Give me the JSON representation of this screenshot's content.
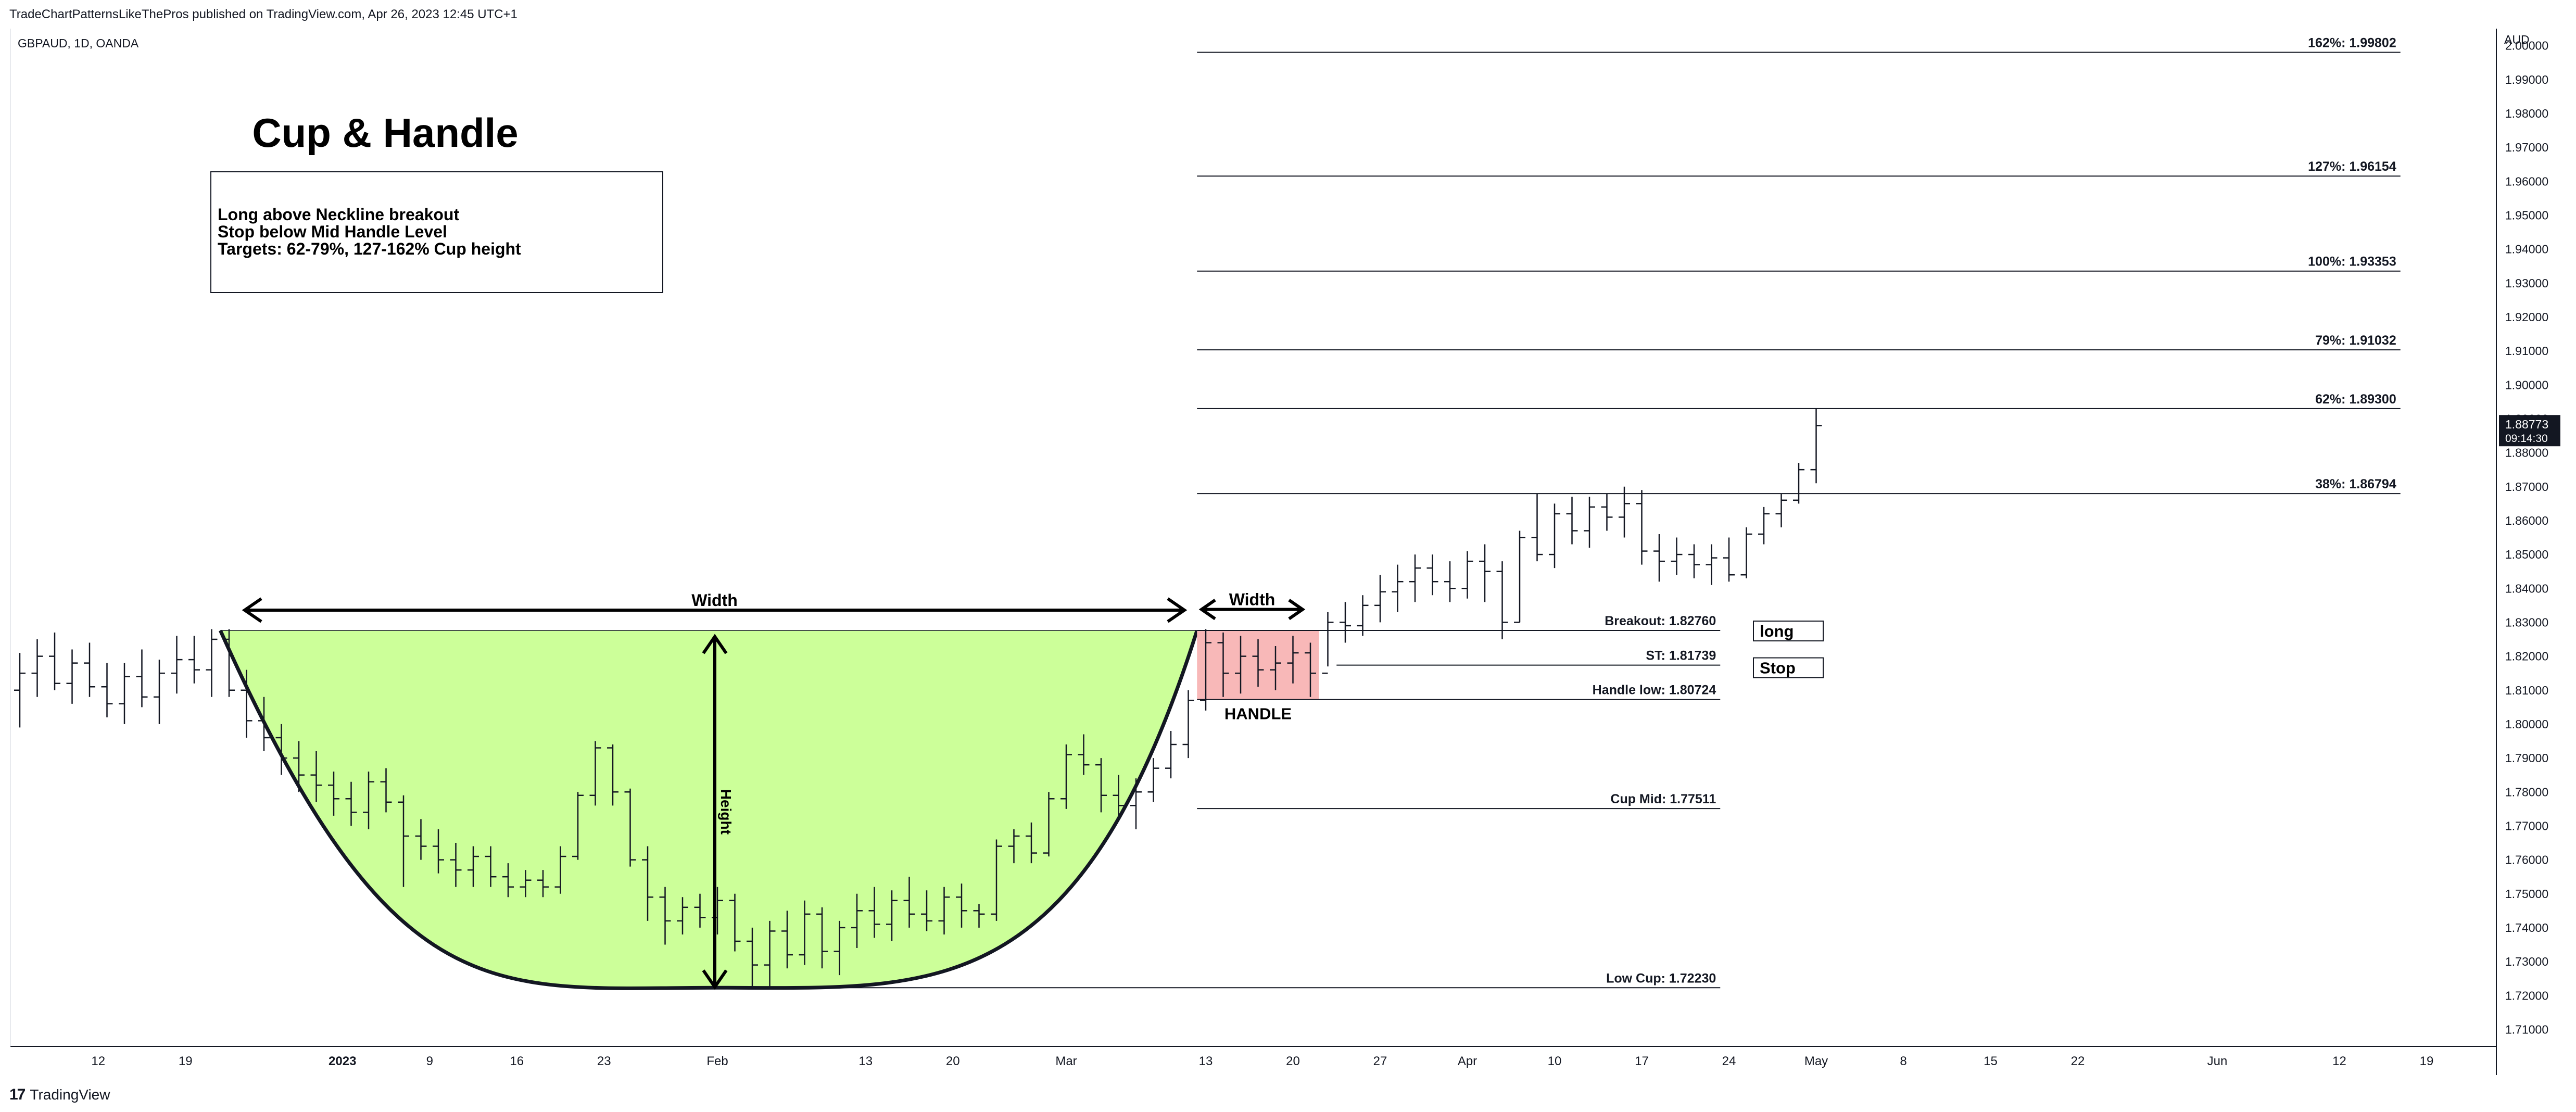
{
  "header": {
    "publish_line": "TradeChartPatternsLikeThePros published on TradingView.com, Apr 26, 2023 12:45 UTC+1",
    "symbol_line": "GBPAUD, 1D, OANDA"
  },
  "footer": {
    "brand": "TradingView",
    "logo_glyph": "17"
  },
  "chart_data": {
    "type": "ohlc-bar",
    "symbol": "GBPAUD",
    "timeframe": "1D",
    "exchange": "OANDA",
    "currency_label": "AUD",
    "ylim": [
      1.705,
      2.005
    ],
    "y_ticks": [
      "2.00000",
      "1.99000",
      "1.98000",
      "1.97000",
      "1.96000",
      "1.95000",
      "1.94000",
      "1.93000",
      "1.92000",
      "1.91000",
      "1.90000",
      "1.89000",
      "1.88000",
      "1.87000",
      "1.86000",
      "1.85000",
      "1.84000",
      "1.83000",
      "1.82000",
      "1.81000",
      "1.80000",
      "1.79000",
      "1.78000",
      "1.77000",
      "1.76000",
      "1.75000",
      "1.74000",
      "1.73000",
      "1.72000",
      "1.71000"
    ],
    "x_ticks": [
      {
        "label": "12",
        "bar": 4.5
      },
      {
        "label": "19",
        "bar": 9.5
      },
      {
        "label": "2023",
        "bar": 18.5,
        "bold": true
      },
      {
        "label": "9",
        "bar": 23.5
      },
      {
        "label": "16",
        "bar": 28.5
      },
      {
        "label": "23",
        "bar": 33.5
      },
      {
        "label": "Feb",
        "bar": 40
      },
      {
        "label": "13",
        "bar": 48.5
      },
      {
        "label": "20",
        "bar": 53.5
      },
      {
        "label": "Mar",
        "bar": 60
      },
      {
        "label": "13",
        "bar": 68
      },
      {
        "label": "20",
        "bar": 73
      },
      {
        "label": "27",
        "bar": 78
      },
      {
        "label": "Apr",
        "bar": 83
      },
      {
        "label": "10",
        "bar": 88
      },
      {
        "label": "17",
        "bar": 93
      },
      {
        "label": "24",
        "bar": 98
      },
      {
        "label": "May",
        "bar": 103
      },
      {
        "label": "8",
        "bar": 108
      },
      {
        "label": "15",
        "bar": 113
      },
      {
        "label": "22",
        "bar": 118
      },
      {
        "label": "Jun",
        "bar": 126
      },
      {
        "label": "12",
        "bar": 133
      },
      {
        "label": "19",
        "bar": 138
      }
    ],
    "last_price": {
      "value": "1.88773",
      "countdown": "09:14:30"
    },
    "levels": [
      {
        "label": "162%: 1.99802",
        "value": 1.99802,
        "from_bar": 67.5,
        "to_bar": 136.5
      },
      {
        "label": "127%: 1.96154",
        "value": 1.96154,
        "from_bar": 67.5,
        "to_bar": 136.5
      },
      {
        "label": "100%: 1.93353",
        "value": 1.93353,
        "from_bar": 67.5,
        "to_bar": 136.5
      },
      {
        "label": "79%: 1.91032",
        "value": 1.91032,
        "from_bar": 67.5,
        "to_bar": 136.5
      },
      {
        "label": "62%: 1.89300",
        "value": 1.893,
        "from_bar": 67.5,
        "to_bar": 136.5
      },
      {
        "label": "38%: 1.86794",
        "value": 1.86794,
        "from_bar": 67.5,
        "to_bar": 136.5
      },
      {
        "label": "Breakout: 1.82760",
        "value": 1.8276,
        "from_bar": 67.5,
        "to_bar": 97.5
      },
      {
        "label": "ST: 1.81739",
        "value": 1.81739,
        "from_bar": 75.5,
        "to_bar": 97.5
      },
      {
        "label": "Handle low: 1.80724",
        "value": 1.80724,
        "from_bar": 67.5,
        "to_bar": 97.5
      },
      {
        "label": "Cup Mid: 1.77511",
        "value": 1.77511,
        "from_bar": 67.5,
        "to_bar": 97.5
      },
      {
        "label": "Low Cup: 1.72230",
        "value": 1.7223,
        "from_bar": 42,
        "to_bar": 97.5
      }
    ],
    "annotations": {
      "title": "Cup & Handle",
      "note_lines": [
        "Long above Neckline breakout",
        "Stop below Mid Handle Level",
        "Targets: 62-79%, 127-162% Cup height"
      ],
      "cup_width_label": "Width",
      "handle_width_label": "Width",
      "height_label": "Height",
      "handle_label": "HANDLE",
      "long_label": "long",
      "stop_label": "Stop"
    },
    "pattern": {
      "rim_left_bar": 11.5,
      "rim_right_bar": 67.5,
      "rim_price": 1.8276,
      "bottom_bar": 40,
      "bottom_price": 1.7223,
      "handle_from_bar": 67.5,
      "handle_to_bar": 74.5,
      "handle_top": 1.8276,
      "handle_bottom": 1.8072
    },
    "colors": {
      "cup_fill": "#ccff99",
      "handle_fill": "#f8b8b8",
      "bar": "#131722",
      "line": "#131722"
    },
    "bars": [
      {
        "o": 1.81,
        "h": 1.821,
        "l": 1.799,
        "c": 1.815
      },
      {
        "o": 1.815,
        "h": 1.825,
        "l": 1.808,
        "c": 1.82
      },
      {
        "o": 1.82,
        "h": 1.827,
        "l": 1.81,
        "c": 1.812
      },
      {
        "o": 1.812,
        "h": 1.822,
        "l": 1.806,
        "c": 1.818
      },
      {
        "o": 1.818,
        "h": 1.824,
        "l": 1.808,
        "c": 1.811
      },
      {
        "o": 1.811,
        "h": 1.818,
        "l": 1.802,
        "c": 1.806
      },
      {
        "o": 1.806,
        "h": 1.818,
        "l": 1.8,
        "c": 1.814
      },
      {
        "o": 1.814,
        "h": 1.822,
        "l": 1.805,
        "c": 1.808
      },
      {
        "o": 1.808,
        "h": 1.819,
        "l": 1.8,
        "c": 1.815
      },
      {
        "o": 1.815,
        "h": 1.826,
        "l": 1.809,
        "c": 1.819
      },
      {
        "o": 1.819,
        "h": 1.826,
        "l": 1.812,
        "c": 1.816
      },
      {
        "o": 1.816,
        "h": 1.828,
        "l": 1.808,
        "c": 1.825
      },
      {
        "o": 1.825,
        "h": 1.828,
        "l": 1.808,
        "c": 1.81
      },
      {
        "o": 1.81,
        "h": 1.816,
        "l": 1.796,
        "c": 1.801
      },
      {
        "o": 1.801,
        "h": 1.808,
        "l": 1.792,
        "c": 1.796
      },
      {
        "o": 1.796,
        "h": 1.8,
        "l": 1.785,
        "c": 1.79
      },
      {
        "o": 1.79,
        "h": 1.795,
        "l": 1.78,
        "c": 1.785
      },
      {
        "o": 1.785,
        "h": 1.792,
        "l": 1.777,
        "c": 1.782
      },
      {
        "o": 1.782,
        "h": 1.786,
        "l": 1.773,
        "c": 1.778
      },
      {
        "o": 1.778,
        "h": 1.783,
        "l": 1.77,
        "c": 1.774
      },
      {
        "o": 1.774,
        "h": 1.786,
        "l": 1.769,
        "c": 1.783
      },
      {
        "o": 1.783,
        "h": 1.787,
        "l": 1.774,
        "c": 1.777
      },
      {
        "o": 1.777,
        "h": 1.779,
        "l": 1.752,
        "c": 1.767
      },
      {
        "o": 1.767,
        "h": 1.772,
        "l": 1.76,
        "c": 1.764
      },
      {
        "o": 1.764,
        "h": 1.769,
        "l": 1.756,
        "c": 1.76
      },
      {
        "o": 1.76,
        "h": 1.765,
        "l": 1.752,
        "c": 1.757
      },
      {
        "o": 1.757,
        "h": 1.764,
        "l": 1.752,
        "c": 1.761
      },
      {
        "o": 1.761,
        "h": 1.764,
        "l": 1.752,
        "c": 1.755
      },
      {
        "o": 1.755,
        "h": 1.759,
        "l": 1.749,
        "c": 1.752
      },
      {
        "o": 1.752,
        "h": 1.757,
        "l": 1.749,
        "c": 1.754
      },
      {
        "o": 1.754,
        "h": 1.757,
        "l": 1.749,
        "c": 1.752
      },
      {
        "o": 1.752,
        "h": 1.764,
        "l": 1.75,
        "c": 1.761
      },
      {
        "o": 1.761,
        "h": 1.78,
        "l": 1.76,
        "c": 1.779
      },
      {
        "o": 1.779,
        "h": 1.795,
        "l": 1.776,
        "c": 1.793
      },
      {
        "o": 1.793,
        "h": 1.794,
        "l": 1.776,
        "c": 1.78
      },
      {
        "o": 1.78,
        "h": 1.781,
        "l": 1.758,
        "c": 1.76
      },
      {
        "o": 1.76,
        "h": 1.764,
        "l": 1.742,
        "c": 1.749
      },
      {
        "o": 1.749,
        "h": 1.752,
        "l": 1.735,
        "c": 1.742
      },
      {
        "o": 1.742,
        "h": 1.749,
        "l": 1.738,
        "c": 1.746
      },
      {
        "o": 1.746,
        "h": 1.75,
        "l": 1.74,
        "c": 1.743
      },
      {
        "o": 1.743,
        "h": 1.752,
        "l": 1.738,
        "c": 1.748
      },
      {
        "o": 1.748,
        "h": 1.75,
        "l": 1.733,
        "c": 1.736
      },
      {
        "o": 1.736,
        "h": 1.74,
        "l": 1.722,
        "c": 1.729
      },
      {
        "o": 1.729,
        "h": 1.742,
        "l": 1.722,
        "c": 1.739
      },
      {
        "o": 1.739,
        "h": 1.745,
        "l": 1.728,
        "c": 1.732
      },
      {
        "o": 1.732,
        "h": 1.748,
        "l": 1.729,
        "c": 1.744
      },
      {
        "o": 1.744,
        "h": 1.746,
        "l": 1.728,
        "c": 1.733
      },
      {
        "o": 1.733,
        "h": 1.742,
        "l": 1.726,
        "c": 1.74
      },
      {
        "o": 1.74,
        "h": 1.75,
        "l": 1.734,
        "c": 1.745
      },
      {
        "o": 1.745,
        "h": 1.752,
        "l": 1.737,
        "c": 1.741
      },
      {
        "o": 1.741,
        "h": 1.751,
        "l": 1.736,
        "c": 1.748
      },
      {
        "o": 1.748,
        "h": 1.755,
        "l": 1.74,
        "c": 1.744
      },
      {
        "o": 1.744,
        "h": 1.751,
        "l": 1.739,
        "c": 1.742
      },
      {
        "o": 1.742,
        "h": 1.752,
        "l": 1.738,
        "c": 1.749
      },
      {
        "o": 1.749,
        "h": 1.753,
        "l": 1.74,
        "c": 1.745
      },
      {
        "o": 1.745,
        "h": 1.747,
        "l": 1.74,
        "c": 1.744
      },
      {
        "o": 1.744,
        "h": 1.766,
        "l": 1.742,
        "c": 1.764
      },
      {
        "o": 1.764,
        "h": 1.769,
        "l": 1.759,
        "c": 1.767
      },
      {
        "o": 1.767,
        "h": 1.771,
        "l": 1.759,
        "c": 1.762
      },
      {
        "o": 1.762,
        "h": 1.78,
        "l": 1.761,
        "c": 1.778
      },
      {
        "o": 1.778,
        "h": 1.794,
        "l": 1.775,
        "c": 1.791
      },
      {
        "o": 1.791,
        "h": 1.797,
        "l": 1.785,
        "c": 1.788
      },
      {
        "o": 1.788,
        "h": 1.79,
        "l": 1.774,
        "c": 1.779
      },
      {
        "o": 1.779,
        "h": 1.785,
        "l": 1.772,
        "c": 1.776
      },
      {
        "o": 1.776,
        "h": 1.784,
        "l": 1.769,
        "c": 1.78
      },
      {
        "o": 1.78,
        "h": 1.79,
        "l": 1.777,
        "c": 1.787
      },
      {
        "o": 1.787,
        "h": 1.798,
        "l": 1.784,
        "c": 1.794
      },
      {
        "o": 1.794,
        "h": 1.81,
        "l": 1.79,
        "c": 1.807
      },
      {
        "o": 1.807,
        "h": 1.828,
        "l": 1.804,
        "c": 1.824
      },
      {
        "o": 1.824,
        "h": 1.827,
        "l": 1.808,
        "c": 1.815
      },
      {
        "o": 1.815,
        "h": 1.826,
        "l": 1.809,
        "c": 1.82
      },
      {
        "o": 1.82,
        "h": 1.825,
        "l": 1.811,
        "c": 1.816
      },
      {
        "o": 1.816,
        "h": 1.823,
        "l": 1.81,
        "c": 1.818
      },
      {
        "o": 1.818,
        "h": 1.826,
        "l": 1.812,
        "c": 1.821
      },
      {
        "o": 1.821,
        "h": 1.824,
        "l": 1.808,
        "c": 1.815
      },
      {
        "o": 1.815,
        "h": 1.833,
        "l": 1.817,
        "c": 1.83
      },
      {
        "o": 1.83,
        "h": 1.836,
        "l": 1.824,
        "c": 1.829
      },
      {
        "o": 1.829,
        "h": 1.838,
        "l": 1.826,
        "c": 1.835
      },
      {
        "o": 1.835,
        "h": 1.844,
        "l": 1.83,
        "c": 1.839
      },
      {
        "o": 1.839,
        "h": 1.847,
        "l": 1.833,
        "c": 1.842
      },
      {
        "o": 1.842,
        "h": 1.85,
        "l": 1.836,
        "c": 1.846
      },
      {
        "o": 1.846,
        "h": 1.85,
        "l": 1.838,
        "c": 1.842
      },
      {
        "o": 1.842,
        "h": 1.848,
        "l": 1.836,
        "c": 1.84
      },
      {
        "o": 1.84,
        "h": 1.851,
        "l": 1.837,
        "c": 1.848
      },
      {
        "o": 1.848,
        "h": 1.853,
        "l": 1.836,
        "c": 1.845
      },
      {
        "o": 1.845,
        "h": 1.848,
        "l": 1.825,
        "c": 1.83
      },
      {
        "o": 1.83,
        "h": 1.857,
        "l": 1.83,
        "c": 1.855
      },
      {
        "o": 1.855,
        "h": 1.868,
        "l": 1.848,
        "c": 1.85
      },
      {
        "o": 1.85,
        "h": 1.865,
        "l": 1.846,
        "c": 1.862
      },
      {
        "o": 1.862,
        "h": 1.867,
        "l": 1.853,
        "c": 1.857
      },
      {
        "o": 1.857,
        "h": 1.867,
        "l": 1.852,
        "c": 1.864
      },
      {
        "o": 1.864,
        "h": 1.868,
        "l": 1.857,
        "c": 1.861
      },
      {
        "o": 1.861,
        "h": 1.87,
        "l": 1.855,
        "c": 1.865
      },
      {
        "o": 1.865,
        "h": 1.869,
        "l": 1.847,
        "c": 1.851
      },
      {
        "o": 1.851,
        "h": 1.856,
        "l": 1.842,
        "c": 1.848
      },
      {
        "o": 1.848,
        "h": 1.855,
        "l": 1.844,
        "c": 1.85
      },
      {
        "o": 1.85,
        "h": 1.853,
        "l": 1.843,
        "c": 1.847
      },
      {
        "o": 1.847,
        "h": 1.853,
        "l": 1.841,
        "c": 1.849
      },
      {
        "o": 1.849,
        "h": 1.855,
        "l": 1.842,
        "c": 1.844
      },
      {
        "o": 1.844,
        "h": 1.858,
        "l": 1.843,
        "c": 1.856
      },
      {
        "o": 1.856,
        "h": 1.864,
        "l": 1.853,
        "c": 1.862
      },
      {
        "o": 1.862,
        "h": 1.868,
        "l": 1.858,
        "c": 1.866
      },
      {
        "o": 1.866,
        "h": 1.877,
        "l": 1.865,
        "c": 1.875
      },
      {
        "o": 1.875,
        "h": 1.893,
        "l": 1.871,
        "c": 1.888
      }
    ]
  }
}
